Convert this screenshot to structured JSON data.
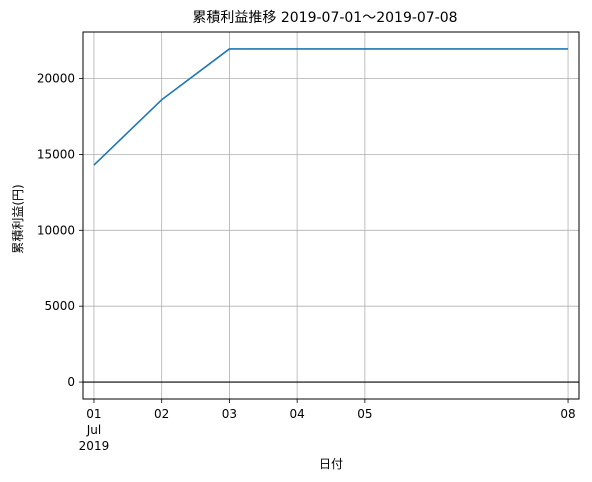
{
  "chart_data": {
    "type": "line",
    "title": "累積利益推移 2019-07-01〜2019-07-08",
    "xlabel": "日付",
    "ylabel": "累積利益(円)",
    "x": [
      "2019-07-01",
      "2019-07-02",
      "2019-07-03",
      "2019-07-08"
    ],
    "series": [
      {
        "values": [
          14300,
          18600,
          21950,
          21950
        ],
        "color": "#1f77b4"
      }
    ],
    "x_ticks": [
      {
        "date": "2019-07-01",
        "label": "01",
        "sublabel1": "Jul",
        "sublabel2": "2019"
      },
      {
        "date": "2019-07-02",
        "label": "02"
      },
      {
        "date": "2019-07-03",
        "label": "03"
      },
      {
        "date": "2019-07-04",
        "label": "04"
      },
      {
        "date": "2019-07-05",
        "label": "05"
      },
      {
        "date": "2019-07-08",
        "label": "08"
      }
    ],
    "y_ticks": [
      {
        "value": 0,
        "label": "0"
      },
      {
        "value": 5000,
        "label": "5000"
      },
      {
        "value": 10000,
        "label": "10000"
      },
      {
        "value": 15000,
        "label": "15000"
      },
      {
        "value": 20000,
        "label": "20000"
      }
    ],
    "xlim": [
      "2019-06-30T20:07:12",
      "2019-07-08T03:52:48"
    ],
    "ylim": [
      -1115,
      23065
    ],
    "reference_line": {
      "y": 0,
      "color": "#000000"
    },
    "grid": true,
    "grid_color": "#b0b0b0"
  }
}
